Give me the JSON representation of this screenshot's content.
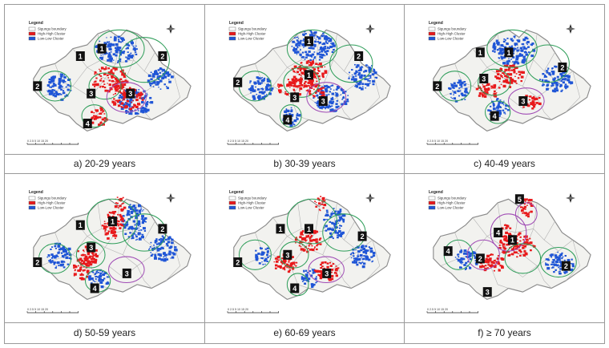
{
  "legend": {
    "title": "Legend",
    "items": [
      {
        "label": "Sigungu boundary",
        "color": "#ffffff"
      },
      {
        "label": "High-High Cluster",
        "color": "#e8191b"
      },
      {
        "label": "Low-Low Cluster",
        "color": "#1f55d6"
      }
    ]
  },
  "colors": {
    "high": "#e8191b",
    "low": "#1f55d6",
    "land": "#f2f2ef",
    "boundary": "#8a8a8a",
    "ellipse_green": "#2f9e5a",
    "ellipse_purple": "#a04cb5"
  },
  "scale_bar_text": "0 2.5 5   10   15   20",
  "panels": [
    {
      "id": "a",
      "caption": "a) 20-29 years",
      "labels": [
        "1",
        "1",
        "2",
        "2",
        "3",
        "3",
        "4"
      ]
    },
    {
      "id": "b",
      "caption": "b) 30-39 years",
      "labels": [
        "1",
        "1",
        "2",
        "2",
        "3",
        "3",
        "4"
      ]
    },
    {
      "id": "c",
      "caption": "c) 40-49 years",
      "labels": [
        "1",
        "1",
        "2",
        "2",
        "3",
        "3",
        "4"
      ]
    },
    {
      "id": "d",
      "caption": "d) 50-59 years",
      "labels": [
        "1",
        "1",
        "2",
        "2",
        "3",
        "3",
        "4"
      ]
    },
    {
      "id": "e",
      "caption": "e) 60-69 years",
      "labels": [
        "1",
        "1",
        "2",
        "2",
        "3",
        "3",
        "4"
      ]
    },
    {
      "id": "f",
      "caption": "f) ≥ 70 years",
      "labels": [
        "5",
        "4",
        "1",
        "4",
        "2",
        "2",
        "3"
      ]
    }
  ]
}
